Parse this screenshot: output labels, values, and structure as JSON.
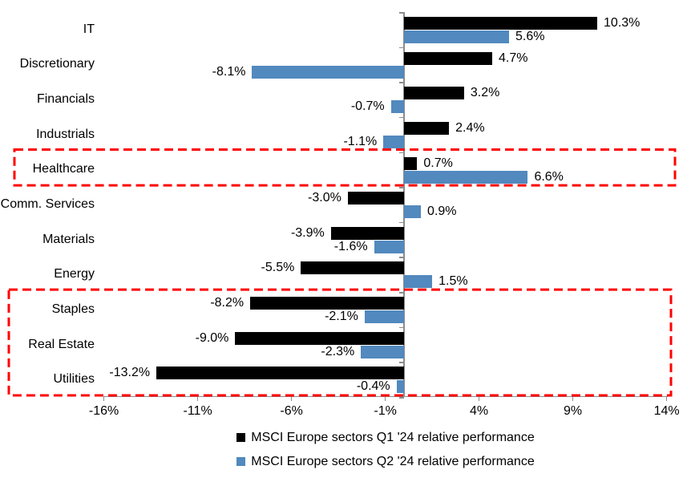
{
  "chart_data": {
    "type": "bar",
    "orientation": "horizontal",
    "title": "",
    "categories": [
      "IT",
      "Discretionary",
      "Financials",
      "Industrials",
      "Healthcare",
      "Comm. Services",
      "Materials",
      "Energy",
      "Staples",
      "Real Estate",
      "Utilities"
    ],
    "series": [
      {
        "name": "MSCI Europe sectors Q1 '24 relative performance",
        "color": "#000000",
        "values": [
          10.3,
          4.7,
          3.2,
          2.4,
          0.7,
          -3.0,
          -3.9,
          -5.5,
          -8.2,
          -9.0,
          -13.2
        ],
        "labels": [
          "10.3%",
          "4.7%",
          "3.2%",
          "2.4%",
          "0.7%",
          "-3.0%",
          "-3.9%",
          "-5.5%",
          "-8.2%",
          "-9.0%",
          "-13.2%"
        ]
      },
      {
        "name": "MSCI Europe sectors Q2 '24 relative performance",
        "color": "#5289BE",
        "values": [
          5.6,
          -8.1,
          -0.7,
          -1.1,
          6.6,
          0.9,
          -1.6,
          1.5,
          -2.1,
          -2.3,
          -0.4
        ],
        "labels": [
          "5.6%",
          "-8.1%",
          "-0.7%",
          "-1.1%",
          "6.6%",
          "0.9%",
          "-1.6%",
          "1.5%",
          "-2.1%",
          "-2.3%",
          "-0.4%"
        ]
      }
    ],
    "x_ticks": [
      -16,
      -11,
      -6,
      -1,
      4,
      9,
      14
    ],
    "x_tick_labels": [
      "-16%",
      "-11%",
      "-6%",
      "-1%",
      "4%",
      "9%",
      "14%"
    ],
    "xlim": [
      -16,
      14
    ],
    "grid": false,
    "legend_position": "bottom",
    "axis_color": "#8C8C8C",
    "highlight_color": "#FF0000",
    "highlights": [
      {
        "name": "healthcare-box",
        "categories": [
          "Healthcare"
        ]
      },
      {
        "name": "defensives-box",
        "categories": [
          "Staples",
          "Real Estate",
          "Utilities"
        ]
      }
    ]
  },
  "legend": {
    "items": [
      {
        "label": "MSCI Europe sectors Q1 '24 relative performance",
        "color": "#000000"
      },
      {
        "label": "MSCI Europe sectors Q2 '24 relative performance",
        "color": "#5289BE"
      }
    ]
  }
}
